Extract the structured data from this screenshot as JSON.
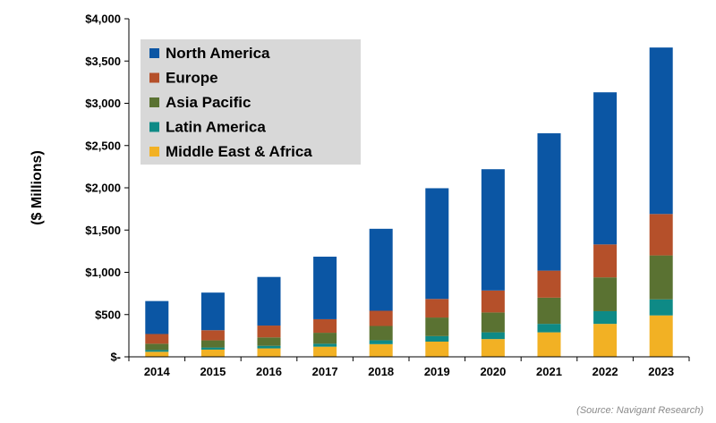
{
  "chart_data": {
    "type": "bar",
    "stacked": true,
    "categories": [
      "2014",
      "2015",
      "2016",
      "2017",
      "2018",
      "2019",
      "2020",
      "2021",
      "2022",
      "2023"
    ],
    "series": [
      {
        "name": "Middle East & Africa",
        "color": "#f2b124",
        "values": [
          60,
          85,
          100,
          120,
          150,
          180,
          210,
          290,
          390,
          490
        ]
      },
      {
        "name": "Latin America",
        "color": "#0e8a86",
        "values": [
          20,
          25,
          30,
          35,
          45,
          65,
          80,
          100,
          150,
          190
        ]
      },
      {
        "name": "Asia Pacific",
        "color": "#5a7232",
        "values": [
          75,
          85,
          100,
          130,
          170,
          220,
          235,
          310,
          400,
          520
        ]
      },
      {
        "name": "Europe",
        "color": "#b5502a",
        "values": [
          115,
          120,
          140,
          160,
          180,
          220,
          260,
          320,
          390,
          490
        ]
      },
      {
        "name": "North America",
        "color": "#0b56a4",
        "values": [
          390,
          445,
          575,
          740,
          970,
          1310,
          1435,
          1625,
          1800,
          1970
        ]
      }
    ],
    "legend_order": [
      "North America",
      "Europe",
      "Asia Pacific",
      "Latin America",
      "Middle East & Africa"
    ],
    "ylabel": "($ Millions)",
    "xlabel": "",
    "ylim": [
      0,
      4000
    ],
    "yticks": [
      0,
      500,
      1000,
      1500,
      2000,
      2500,
      3000,
      3500,
      4000
    ],
    "ytick_labels": [
      "$-",
      "$500",
      "$1,000",
      "$1,500",
      "$2,000",
      "$2,500",
      "$3,000",
      "$3,500",
      "$4,000"
    ],
    "legend_position": "top-left",
    "grid": false
  },
  "source_note": "(Source: Navigant Research)"
}
